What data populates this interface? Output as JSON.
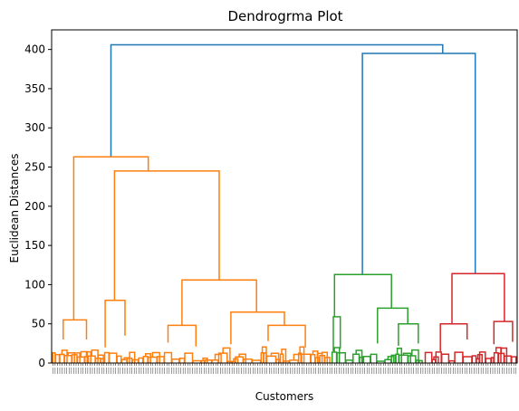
{
  "chart_data": {
    "type": "dendrogram",
    "title": "Dendrogrma Plot",
    "xlabel": "Customers",
    "ylabel": "Euclidean Distances",
    "ylim": [
      0,
      425
    ],
    "yticks": [
      0,
      50,
      100,
      150,
      200,
      250,
      300,
      350,
      400
    ],
    "leaf_count": 200,
    "x_range": [
      0,
      2000
    ],
    "grid": false,
    "legend": "none",
    "link_colors": {
      "above_threshold": "#1f77b4",
      "cluster_1": "#ff7f0e",
      "cluster_2": "#2ca02c",
      "cluster_3": "#d62728"
    },
    "major_links": [
      {
        "cluster": "above_threshold",
        "x": [
          255,
          255,
          1680,
          1680
        ],
        "y": [
          263,
          406,
          406,
          395
        ]
      },
      {
        "cluster": "above_threshold",
        "x": [
          1335,
          1335,
          1820,
          1820
        ],
        "y": [
          113,
          395,
          395,
          114
        ]
      },
      {
        "cluster": "cluster_1",
        "x": [
          95,
          95,
          415,
          415
        ],
        "y": [
          55,
          263,
          263,
          245
        ]
      },
      {
        "cluster": "cluster_1",
        "x": [
          270,
          270,
          720,
          720
        ],
        "y": [
          80,
          245,
          245,
          106
        ]
      },
      {
        "cluster": "cluster_1",
        "x": [
          560,
          560,
          880,
          880
        ],
        "y": [
          48,
          106,
          106,
          65
        ]
      },
      {
        "cluster": "cluster_1",
        "x": [
          770,
          770,
          1000,
          1000
        ],
        "y": [
          24,
          65,
          65,
          48
        ]
      },
      {
        "cluster": "cluster_1",
        "x": [
          50,
          50,
          150,
          150
        ],
        "y": [
          30,
          55,
          55,
          30
        ]
      },
      {
        "cluster": "cluster_1",
        "x": [
          230,
          230,
          315,
          315
        ],
        "y": [
          20,
          80,
          80,
          35
        ]
      },
      {
        "cluster": "cluster_1",
        "x": [
          500,
          500,
          620,
          620
        ],
        "y": [
          26,
          48,
          48,
          21
        ]
      },
      {
        "cluster": "cluster_1",
        "x": [
          930,
          930,
          1090,
          1090
        ],
        "y": [
          28,
          48,
          48,
          20
        ]
      },
      {
        "cluster": "cluster_2",
        "x": [
          1215,
          1215,
          1460,
          1460
        ],
        "y": [
          59,
          113,
          113,
          70
        ]
      },
      {
        "cluster": "cluster_2",
        "x": [
          1400,
          1400,
          1530,
          1530
        ],
        "y": [
          25,
          70,
          70,
          50
        ]
      },
      {
        "cluster": "cluster_2",
        "x": [
          1210,
          1210,
          1240,
          1240
        ],
        "y": [
          15,
          59,
          59,
          18
        ]
      },
      {
        "cluster": "cluster_2",
        "x": [
          1490,
          1490,
          1575,
          1575
        ],
        "y": [
          22,
          50,
          50,
          25
        ]
      },
      {
        "cluster": "cluster_3",
        "x": [
          1720,
          1720,
          1945,
          1945
        ],
        "y": [
          50,
          114,
          114,
          53
        ]
      },
      {
        "cluster": "cluster_3",
        "x": [
          1670,
          1670,
          1785,
          1785
        ],
        "y": [
          15,
          50,
          50,
          30
        ]
      },
      {
        "cluster": "cluster_3",
        "x": [
          1900,
          1900,
          1980,
          1980
        ],
        "y": [
          24,
          53,
          53,
          27
        ]
      }
    ]
  }
}
